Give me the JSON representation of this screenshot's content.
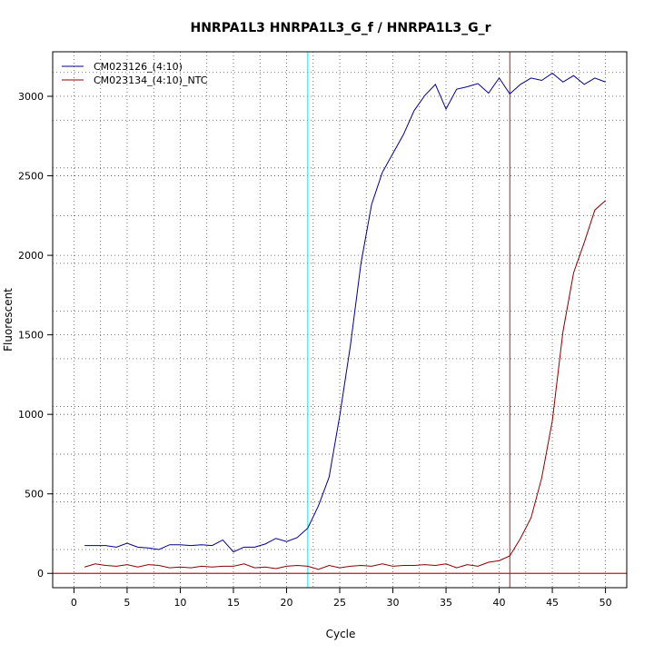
{
  "chart_data": {
    "type": "line",
    "title": "HNRPA1L3  HNRPA1L3_G_f / HNRPA1L3_G_r",
    "xlabel": "Cycle",
    "ylabel": "Fluorescent",
    "xlim": [
      -2,
      52
    ],
    "ylim": [
      -90,
      3280
    ],
    "x_ticks": [
      0,
      5,
      10,
      15,
      20,
      25,
      30,
      35,
      40,
      45,
      50
    ],
    "y_ticks": [
      0,
      500,
      1000,
      1500,
      2000,
      2500,
      3000
    ],
    "x_grid": [
      2.5,
      7.5,
      12.5,
      17.5,
      22.5,
      27.5,
      32.5,
      37.5,
      42.5,
      47.5
    ],
    "y_grid": [
      150,
      450,
      750,
      1050,
      1350,
      1650,
      1950,
      2250,
      2550,
      2850,
      3150
    ],
    "grid": true,
    "legend_position": "top-left",
    "threshold": {
      "y": 0,
      "color": "#B22222"
    },
    "vlines": [
      {
        "x": 22,
        "color": "#00E5EE"
      },
      {
        "x": 41,
        "color": "#B22222"
      }
    ],
    "x": [
      1,
      2,
      3,
      4,
      5,
      6,
      7,
      8,
      9,
      10,
      11,
      12,
      13,
      14,
      15,
      16,
      17,
      18,
      19,
      20,
      21,
      22,
      23,
      24,
      25,
      26,
      27,
      28,
      29,
      30,
      31,
      32,
      33,
      34,
      35,
      36,
      37,
      38,
      39,
      40,
      41,
      42,
      43,
      44,
      45,
      46,
      47,
      48,
      49,
      50
    ],
    "series": [
      {
        "name": "CM023126_(4:10)",
        "color": "#00008B",
        "values": [
          175,
          175,
          175,
          165,
          190,
          165,
          160,
          150,
          180,
          180,
          175,
          180,
          175,
          210,
          135,
          165,
          165,
          185,
          220,
          200,
          225,
          285,
          425,
          605,
          990,
          1430,
          1950,
          2320,
          2520,
          2640,
          2760,
          2910,
          3005,
          3075,
          2920,
          3045,
          3060,
          3080,
          3020,
          3115,
          3015,
          3075,
          3115,
          3100,
          3145,
          3090,
          3130,
          3075,
          3115,
          3090
        ]
      },
      {
        "name": "CM023134_(4:10)_NTC",
        "color": "#8B0000",
        "values": [
          40,
          60,
          50,
          45,
          55,
          40,
          55,
          50,
          35,
          40,
          35,
          45,
          40,
          45,
          45,
          60,
          35,
          40,
          30,
          45,
          50,
          45,
          25,
          50,
          35,
          45,
          50,
          45,
          60,
          45,
          50,
          50,
          55,
          50,
          60,
          35,
          55,
          45,
          70,
          80,
          110,
          220,
          350,
          600,
          960,
          1520,
          1890,
          2080,
          2285,
          2345
        ]
      }
    ]
  }
}
